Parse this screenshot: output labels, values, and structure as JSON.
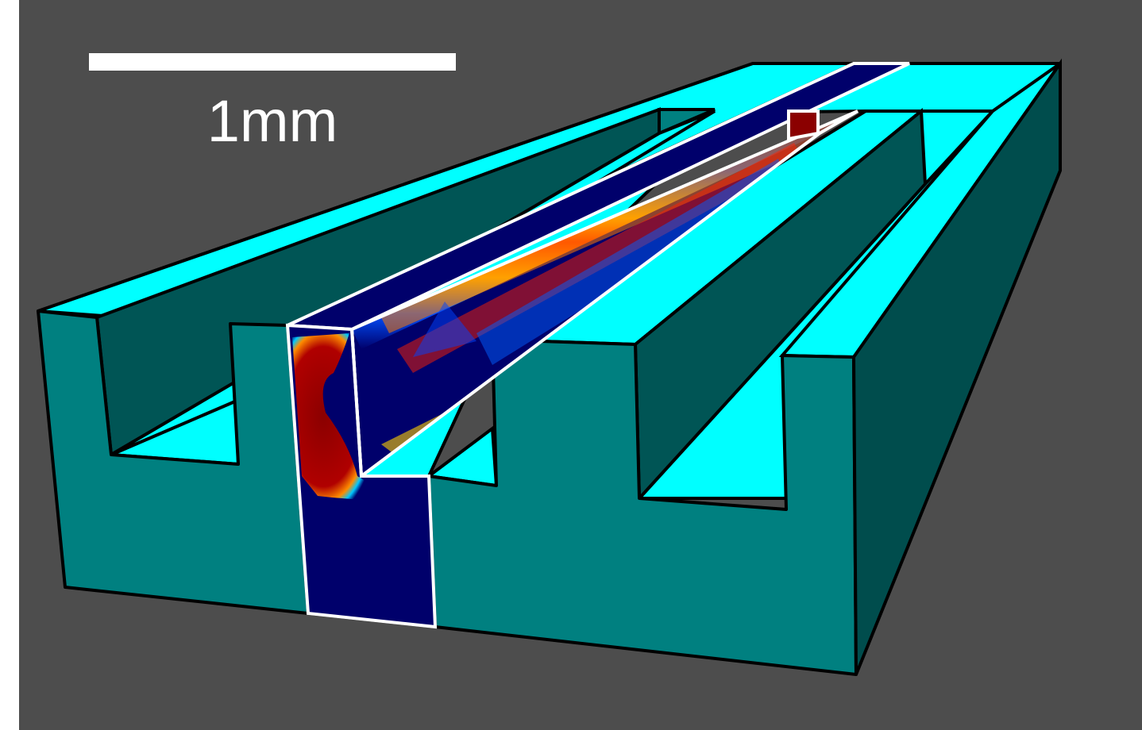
{
  "scale_bar": {
    "label": "1mm"
  },
  "colors": {
    "background": "#4d4d4d",
    "top_face": "#00ffff",
    "front_face": "#008080",
    "side_face": "#004d4d",
    "inner_wall": "#005f5f",
    "outline": "#000000",
    "section_outline": "#ffffff",
    "field_low": "#00006b",
    "field_high": "#8b0000"
  }
}
